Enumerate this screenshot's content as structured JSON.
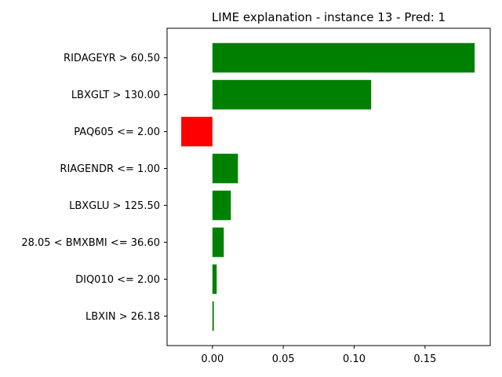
{
  "chart_data": {
    "type": "bar",
    "orientation": "horizontal",
    "title": "LIME explanation - instance 13 - Pred: 1",
    "xlabel": "",
    "ylabel": "",
    "categories": [
      "RIDAGEYR > 60.50",
      "LBXGLT > 130.00",
      "PAQ605 <= 2.00",
      "RIAGENDR <= 1.00",
      "LBXGLU > 125.50",
      "28.05 < BMXBMI <= 36.60",
      "DIQ010 <= 2.00",
      "LBXIN > 26.18"
    ],
    "values": [
      0.185,
      0.112,
      -0.022,
      0.018,
      0.013,
      0.008,
      0.003,
      0.001
    ],
    "xlim": [
      -0.032,
      0.196
    ],
    "xticks": [
      0.0,
      0.05,
      0.1,
      0.15
    ],
    "xtick_labels": [
      "0.00",
      "0.05",
      "0.10",
      "0.15"
    ],
    "colors": {
      "positive": "#008000",
      "negative": "#ff0000"
    },
    "grid": false,
    "legend": "none"
  }
}
